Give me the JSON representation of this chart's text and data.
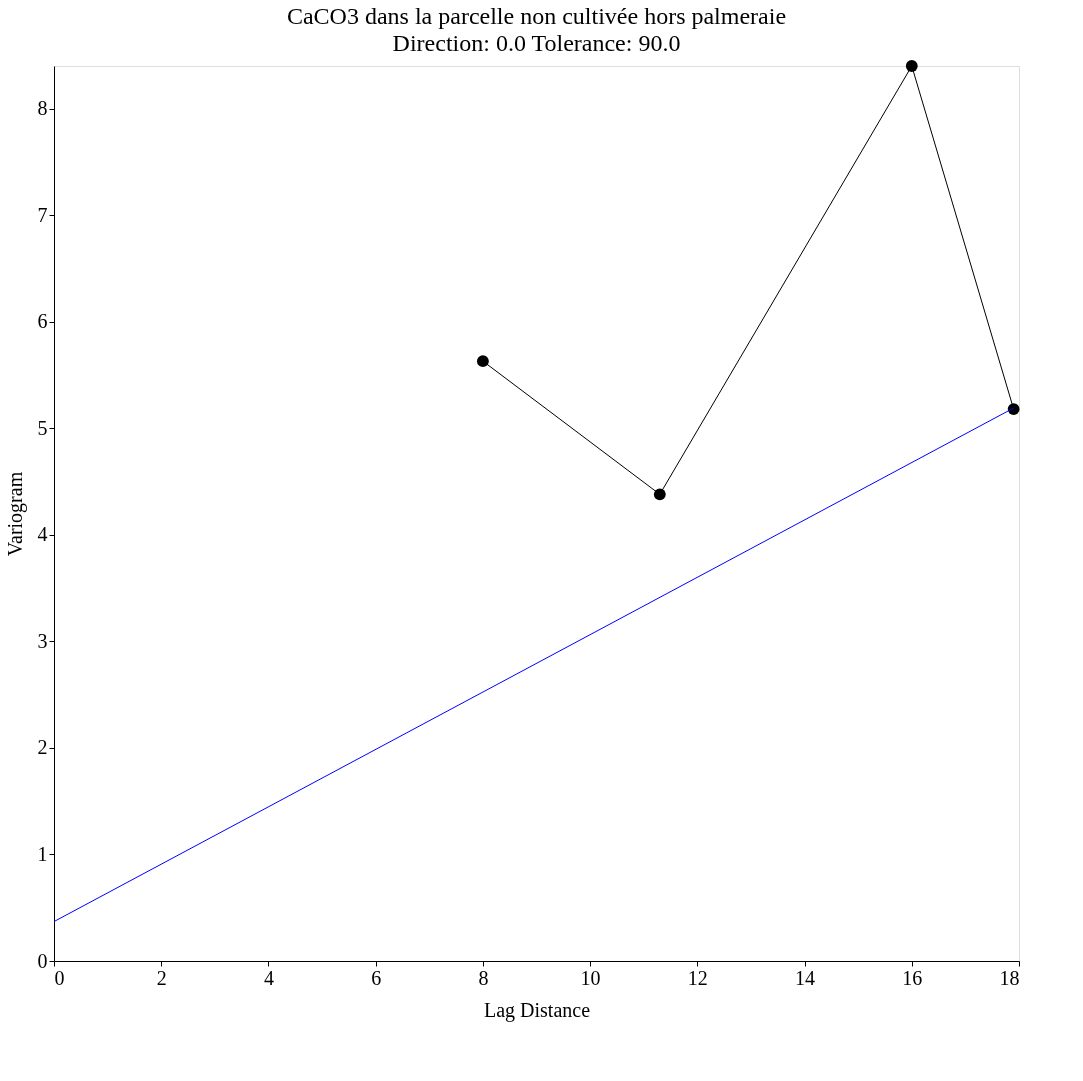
{
  "chart_data": {
    "type": "line",
    "title": "CaCO3 dans la parcelle non cultivée hors palmeraie",
    "subtitle": "Direction: 0.0    Tolerance: 90.0",
    "xlabel": "Lag Distance",
    "ylabel": "Variogram",
    "series": [
      {
        "x": [
          8.0,
          11.3,
          16.0,
          17.9
        ],
        "values": [
          5.63,
          4.38,
          8.4,
          5.18
        ],
        "color": "#000000",
        "marker": "circle"
      },
      {
        "type": "line",
        "x": [
          0,
          17.9
        ],
        "values": [
          0.37,
          5.19
        ],
        "color": "#0000ff",
        "marker": "none"
      }
    ],
    "xlim": [
      0,
      18
    ],
    "ylim": [
      0,
      8.4
    ],
    "xticks": [
      0,
      2,
      4,
      6,
      8,
      10,
      12,
      14,
      16,
      18
    ],
    "yticks": [
      0,
      1,
      2,
      3,
      4,
      5,
      6,
      7,
      8
    ]
  }
}
